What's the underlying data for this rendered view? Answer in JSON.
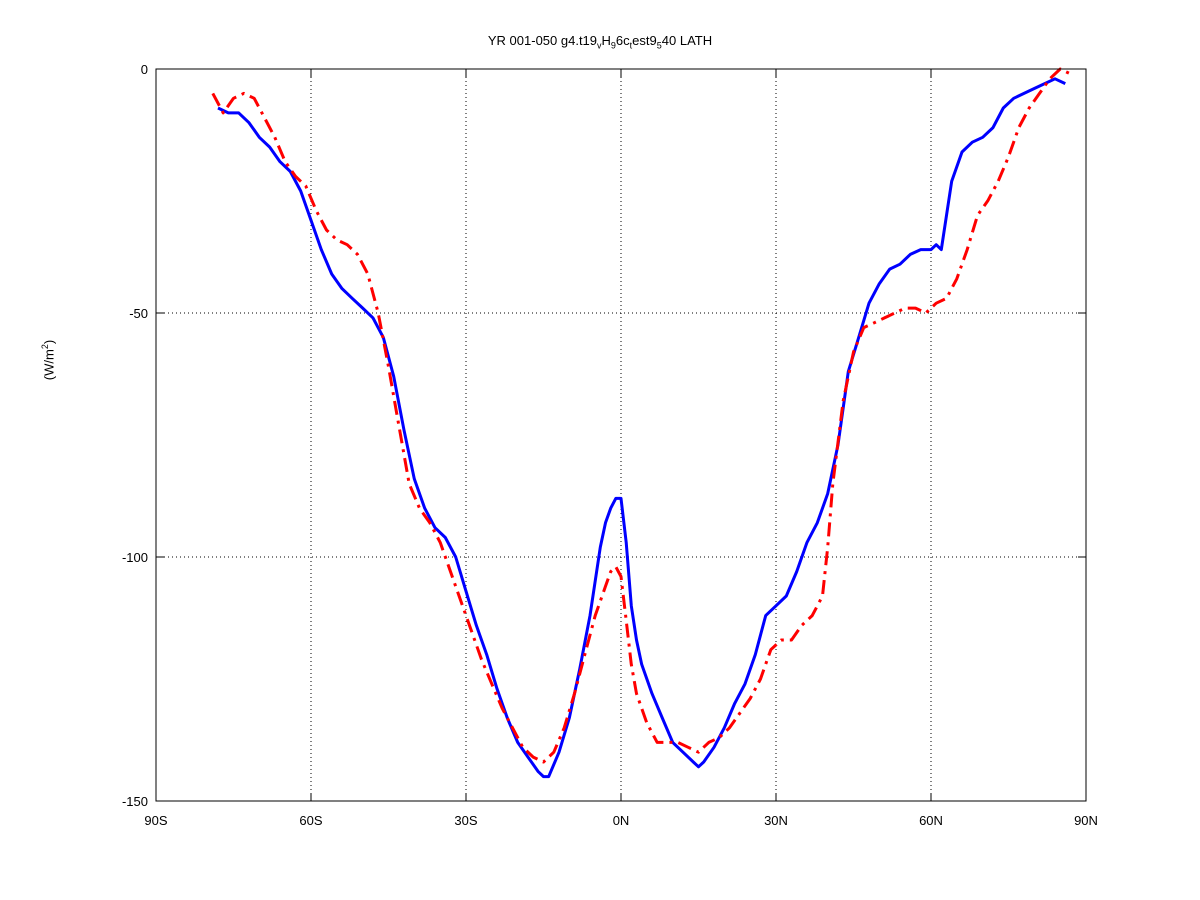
{
  "chart_data": {
    "type": "line",
    "title": {
      "prefix": "YR 001-050 g4.t19",
      "s1": "v",
      "p1": "H",
      "s2": "9",
      "p2": "6c",
      "s3": "t",
      "p3": "est9",
      "s4": "5",
      "p4": "40 LATH"
    },
    "ylabel": {
      "base": "(W/m",
      "exp": "2",
      "close": ")"
    },
    "xlim": [
      -90,
      90
    ],
    "ylim": [
      -150,
      0
    ],
    "xticks": [
      -90,
      -60,
      -30,
      0,
      30,
      60,
      90
    ],
    "xtick_labels": [
      "90S",
      "60S",
      "30S",
      "0N",
      "30N",
      "60N",
      "90N"
    ],
    "yticks": [
      0,
      -50,
      -100,
      -150
    ],
    "ytick_labels": [
      "0",
      "-50",
      "-100",
      "-150"
    ],
    "grid": true,
    "series": [
      {
        "style": "solid",
        "color": "#0000ff",
        "x": [
          -78,
          -76,
          -74,
          -72,
          -70,
          -68,
          -66,
          -64,
          -62,
          -60,
          -58,
          -56,
          -54,
          -52,
          -50,
          -48,
          -46,
          -44,
          -42,
          -40,
          -38,
          -36,
          -34,
          -32,
          -30,
          -28,
          -26,
          -24,
          -22,
          -20,
          -18,
          -16,
          -15,
          -14,
          -12,
          -10,
          -8,
          -6,
          -4,
          -3,
          -2,
          -1,
          0,
          1,
          2,
          3,
          4,
          6,
          8,
          10,
          12,
          14,
          15,
          16,
          18,
          20,
          22,
          24,
          26,
          28,
          30,
          32,
          34,
          36,
          38,
          40,
          42,
          44,
          46,
          48,
          50,
          52,
          54,
          56,
          58,
          60,
          61,
          62,
          63,
          64,
          66,
          68,
          70,
          72,
          74,
          76,
          78,
          80,
          82,
          84,
          86
        ],
        "y": [
          -8,
          -9,
          -9,
          -11,
          -14,
          -16,
          -19,
          -21,
          -25,
          -31,
          -37,
          -42,
          -45,
          -47,
          -49,
          -51,
          -55,
          -63,
          -74,
          -84,
          -90,
          -94,
          -96,
          -100,
          -107,
          -114,
          -120,
          -127,
          -133,
          -138,
          -141,
          -144,
          -145,
          -145,
          -140,
          -133,
          -123,
          -112,
          -98,
          -93,
          -90,
          -88,
          -88,
          -97,
          -110,
          -117,
          -122,
          -128,
          -133,
          -138,
          -140,
          -142,
          -143,
          -142,
          -139,
          -135,
          -130,
          -126,
          -120,
          -112,
          -110,
          -108,
          -103,
          -97,
          -93,
          -87,
          -77,
          -62,
          -55,
          -48,
          -44,
          -41,
          -40,
          -38,
          -37,
          -37,
          -36,
          -37,
          -30,
          -23,
          -17,
          -15,
          -14,
          -12,
          -8,
          -6,
          -5,
          -4,
          -3,
          -2,
          -3
        ]
      },
      {
        "style": "dashdot",
        "color": "#ff0000",
        "x": [
          -79,
          -77,
          -75,
          -73,
          -71,
          -69,
          -67,
          -65,
          -63,
          -61,
          -59,
          -57,
          -55,
          -53,
          -51,
          -49,
          -47,
          -45,
          -43,
          -41,
          -39,
          -37,
          -35,
          -33,
          -31,
          -29,
          -27,
          -25,
          -23,
          -21,
          -19,
          -17,
          -15,
          -13,
          -11,
          -9,
          -7,
          -5,
          -3,
          -2,
          -1,
          0,
          1,
          2,
          3,
          5,
          7,
          9,
          11,
          13,
          15,
          17,
          19,
          21,
          23,
          25,
          27,
          29,
          31,
          33,
          35,
          37,
          39,
          40,
          41,
          43,
          45,
          47,
          49,
          51,
          53,
          55,
          57,
          59,
          61,
          63,
          65,
          67,
          69,
          71,
          73,
          75,
          77,
          79,
          81,
          83,
          85,
          87
        ],
        "y": [
          -5,
          -9,
          -6,
          -5,
          -6,
          -10,
          -14,
          -19,
          -22,
          -24,
          -29,
          -33,
          -35,
          -36,
          -38,
          -42,
          -50,
          -61,
          -73,
          -85,
          -90,
          -93,
          -97,
          -103,
          -109,
          -115,
          -121,
          -126,
          -131,
          -135,
          -139,
          -141,
          -142,
          -140,
          -135,
          -128,
          -120,
          -112,
          -106,
          -103,
          -102,
          -104,
          -113,
          -122,
          -128,
          -134,
          -138,
          -138,
          -138,
          -139,
          -140,
          -138,
          -137,
          -135,
          -132,
          -129,
          -125,
          -119,
          -117,
          -117,
          -114,
          -112,
          -108,
          -98,
          -85,
          -68,
          -58,
          -53,
          -52,
          -51,
          -50,
          -49,
          -49,
          -50,
          -48,
          -47,
          -43,
          -37,
          -30,
          -27,
          -23,
          -18,
          -12,
          -8,
          -5,
          -2,
          0,
          -1
        ]
      }
    ]
  }
}
